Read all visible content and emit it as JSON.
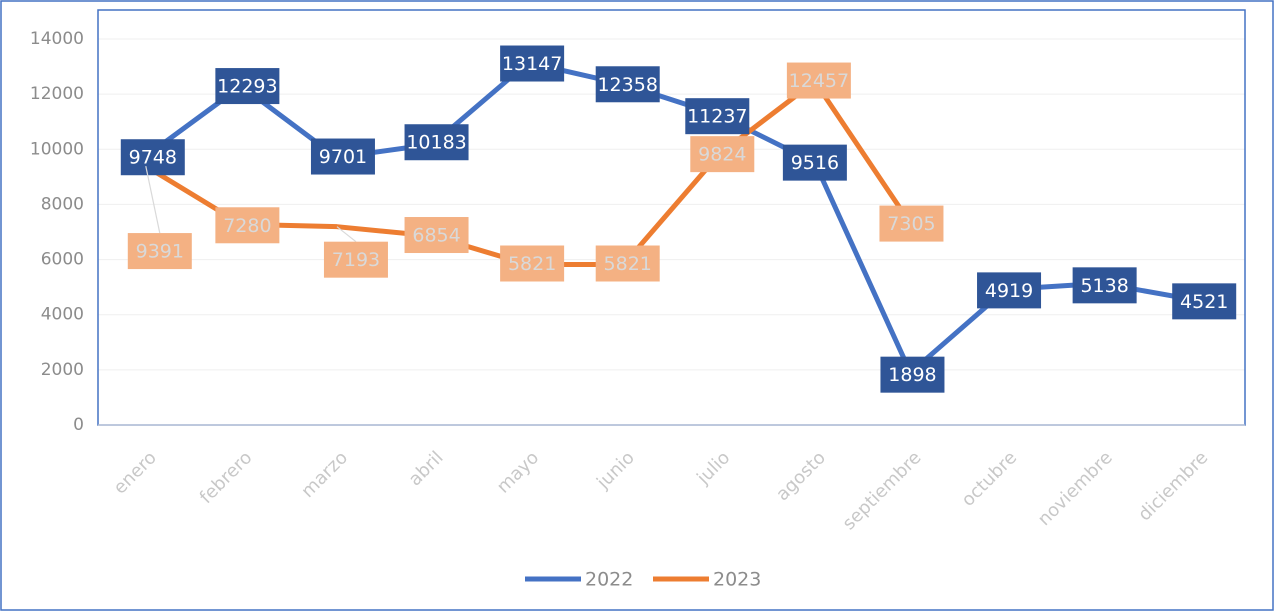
{
  "chart_data": {
    "type": "line",
    "categories": [
      "enero",
      "febrero",
      "marzo",
      "abril",
      "mayo",
      "junio",
      "julio",
      "agosto",
      "septiembre",
      "octubre",
      "noviembre",
      "diciembre"
    ],
    "series": [
      {
        "name": "2022",
        "color": "#4472c4",
        "label_fill": "#2f5597",
        "label_color": "#ffffff",
        "values": [
          9748,
          12293,
          9701,
          10183,
          13147,
          12358,
          11237,
          9516,
          1898,
          4919,
          5138,
          4521
        ]
      },
      {
        "name": "2023",
        "color": "#ed7d31",
        "label_fill": "#f4b183",
        "label_color": "#d9d9d9",
        "values": [
          9391,
          7280,
          7193,
          6854,
          5821,
          5821,
          9824,
          12457,
          7305,
          null,
          null,
          null
        ]
      }
    ],
    "ylim": [
      0,
      14000
    ],
    "yticks": [
      0,
      2000,
      4000,
      6000,
      8000,
      10000,
      12000,
      14000
    ],
    "grid": true,
    "legend": "bottom"
  }
}
